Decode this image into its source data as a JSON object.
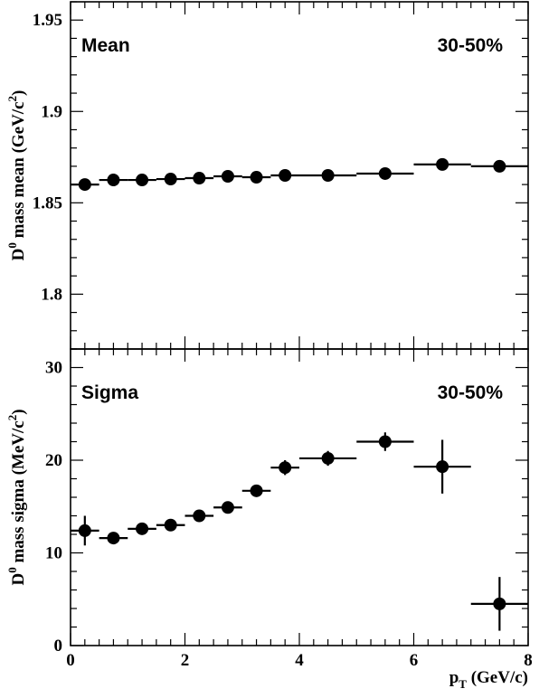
{
  "chart_data": [
    {
      "type": "scatter",
      "panel_label": "Mean",
      "centrality": "30-50%",
      "ylabel_main": "D",
      "ylabel_sup": "0",
      "ylabel_rest": " mass mean (GeV/c",
      "ylabel_sup2": "2",
      "ylabel_end": ")",
      "xlim": [
        0,
        8
      ],
      "ylim": [
        1.77,
        1.96
      ],
      "yticks": [
        {
          "v": 1.8,
          "label": "1.8"
        },
        {
          "v": 1.85,
          "label": "1.85"
        },
        {
          "v": 1.9,
          "label": "1.9"
        },
        {
          "v": 1.95,
          "label": "1.95"
        }
      ],
      "points": [
        {
          "x": 0.25,
          "xlo": 0.0,
          "xhi": 0.5,
          "y": 1.86,
          "err": 0.0
        },
        {
          "x": 0.75,
          "xlo": 0.5,
          "xhi": 1.0,
          "y": 1.8625,
          "err": 0.0
        },
        {
          "x": 1.25,
          "xlo": 1.0,
          "xhi": 1.5,
          "y": 1.8625,
          "err": 0.0
        },
        {
          "x": 1.75,
          "xlo": 1.5,
          "xhi": 2.0,
          "y": 1.863,
          "err": 0.0
        },
        {
          "x": 2.25,
          "xlo": 2.0,
          "xhi": 2.5,
          "y": 1.8635,
          "err": 0.0
        },
        {
          "x": 2.75,
          "xlo": 2.5,
          "xhi": 3.0,
          "y": 1.8645,
          "err": 0.0
        },
        {
          "x": 3.25,
          "xlo": 3.0,
          "xhi": 3.5,
          "y": 1.864,
          "err": 0.0
        },
        {
          "x": 3.75,
          "xlo": 3.5,
          "xhi": 4.0,
          "y": 1.865,
          "err": 0.0
        },
        {
          "x": 4.5,
          "xlo": 4.0,
          "xhi": 5.0,
          "y": 1.865,
          "err": 0.0
        },
        {
          "x": 5.5,
          "xlo": 5.0,
          "xhi": 6.0,
          "y": 1.866,
          "err": 0.0
        },
        {
          "x": 6.5,
          "xlo": 6.0,
          "xhi": 7.0,
          "y": 1.871,
          "err": 0.0
        },
        {
          "x": 7.5,
          "xlo": 7.0,
          "xhi": 8.0,
          "y": 1.87,
          "err": 0.0
        }
      ]
    },
    {
      "type": "scatter",
      "panel_label": "Sigma",
      "centrality": "30-50%",
      "ylabel_main": "D",
      "ylabel_sup": "0",
      "ylabel_rest": " mass sigma (MeV/c",
      "ylabel_sup2": "2",
      "ylabel_end": ")",
      "xlabel_main": "p",
      "xlabel_sub": "T",
      "xlabel_rest": " (GeV/c)",
      "xlim": [
        0,
        8
      ],
      "ylim": [
        0,
        32
      ],
      "yticks": [
        {
          "v": 0,
          "label": "0"
        },
        {
          "v": 10,
          "label": "10"
        },
        {
          "v": 20,
          "label": "20"
        },
        {
          "v": 30,
          "label": "30"
        }
      ],
      "xticks": [
        {
          "v": 0,
          "label": "0"
        },
        {
          "v": 2,
          "label": "2"
        },
        {
          "v": 4,
          "label": "4"
        },
        {
          "v": 6,
          "label": "6"
        },
        {
          "v": 8,
          "label": "8"
        }
      ],
      "points": [
        {
          "x": 0.25,
          "xlo": 0.0,
          "xhi": 0.5,
          "y": 12.4,
          "err": 1.6
        },
        {
          "x": 0.75,
          "xlo": 0.5,
          "xhi": 1.0,
          "y": 11.6,
          "err": 0.5
        },
        {
          "x": 1.25,
          "xlo": 1.0,
          "xhi": 1.5,
          "y": 12.6,
          "err": 0.5
        },
        {
          "x": 1.75,
          "xlo": 1.5,
          "xhi": 2.0,
          "y": 13.0,
          "err": 0.5
        },
        {
          "x": 2.25,
          "xlo": 2.0,
          "xhi": 2.5,
          "y": 14.0,
          "err": 0.5
        },
        {
          "x": 2.75,
          "xlo": 2.5,
          "xhi": 3.0,
          "y": 14.9,
          "err": 0.5
        },
        {
          "x": 3.25,
          "xlo": 3.0,
          "xhi": 3.5,
          "y": 16.7,
          "err": 0.5
        },
        {
          "x": 3.75,
          "xlo": 3.5,
          "xhi": 4.0,
          "y": 19.2,
          "err": 0.8
        },
        {
          "x": 4.5,
          "xlo": 4.0,
          "xhi": 5.0,
          "y": 20.2,
          "err": 0.8
        },
        {
          "x": 5.5,
          "xlo": 5.0,
          "xhi": 6.0,
          "y": 22.0,
          "err": 1.0
        },
        {
          "x": 6.5,
          "xlo": 6.0,
          "xhi": 7.0,
          "y": 19.3,
          "err": 2.9
        },
        {
          "x": 7.5,
          "xlo": 7.0,
          "xhi": 8.0,
          "y": 4.5,
          "err": 2.9
        }
      ]
    }
  ]
}
